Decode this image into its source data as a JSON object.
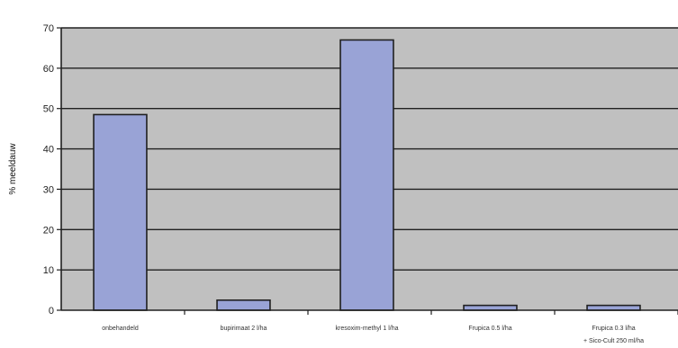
{
  "chart_data": {
    "type": "bar",
    "title": "",
    "xlabel": "",
    "ylabel": "% meeldauw",
    "ylim": [
      0,
      70
    ],
    "yticks": [
      0,
      10,
      20,
      30,
      40,
      50,
      60,
      70
    ],
    "grid": true,
    "legend": "none",
    "categories": [
      "onbehandeld",
      "bupirimaat 2 l/ha",
      "kresoxim-methyl 1 l/ha",
      "Frupica 0.5 l/ha",
      "Frupica 0.3 l/ha"
    ],
    "category_sublabels": [
      "",
      "",
      "",
      "",
      "+ Sico-Cult 250 ml/ha"
    ],
    "values": [
      48.5,
      2.5,
      67,
      1.2,
      1.2
    ],
    "colors": {
      "plot_bg": "#c0c0c0",
      "bar_fill": "#99a3d6",
      "bar_stroke": "#202020",
      "grid": "#202020",
      "axis": "#202020"
    }
  }
}
